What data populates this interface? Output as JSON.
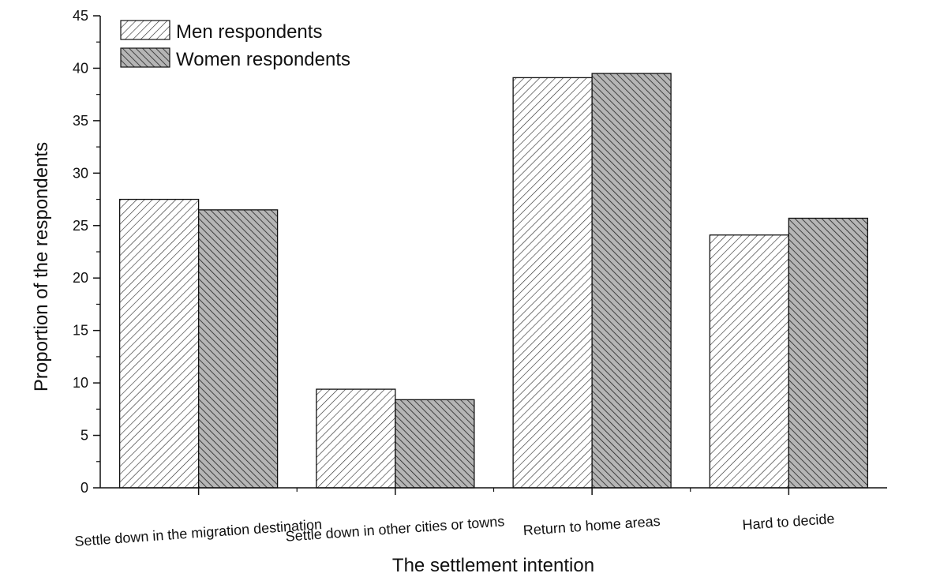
{
  "chart_data": {
    "type": "bar",
    "categories": [
      "Settle down in the migration destination",
      "Settle down in other cities or towns",
      "Return to home areas",
      "Hard to decide"
    ],
    "series": [
      {
        "name": "Men respondents",
        "values": [
          27.5,
          9.4,
          39.1,
          24.1
        ],
        "pattern": "hatch-light"
      },
      {
        "name": "Women respondents",
        "values": [
          26.5,
          8.4,
          39.5,
          25.7
        ],
        "pattern": "hatch-dark"
      }
    ],
    "xlabel": "The settlement intention",
    "ylabel": "Proportion of the respondents",
    "ylim": [
      0,
      45
    ],
    "yticks": [
      0,
      5,
      10,
      15,
      20,
      25,
      30,
      35,
      40,
      45
    ],
    "legend_position": "top-left",
    "grid": false
  }
}
